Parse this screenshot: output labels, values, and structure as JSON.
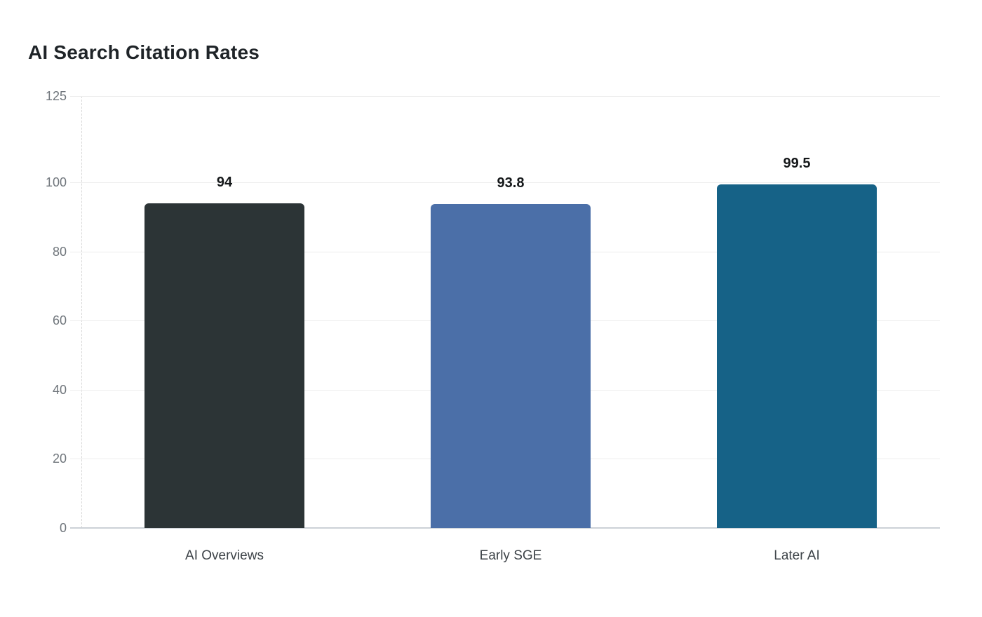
{
  "chart": {
    "title": "AI Search Citation Rates"
  },
  "chart_data": {
    "type": "bar",
    "title": "AI Search Citation Rates",
    "categories": [
      "AI Overviews",
      "Early SGE",
      "Later AI"
    ],
    "values": [
      94,
      93.8,
      99.5
    ],
    "value_labels": [
      "94",
      "93.8",
      "99.5"
    ],
    "bar_colors": [
      "#2c3436",
      "#4b6fa8",
      "#166287"
    ],
    "xlabel": "",
    "ylabel": "",
    "ylim": [
      0,
      125
    ],
    "yticks": [
      0,
      20,
      40,
      60,
      80,
      100,
      125
    ],
    "grid": "horizontal",
    "legend": "none",
    "background_color": "#ffffff"
  }
}
